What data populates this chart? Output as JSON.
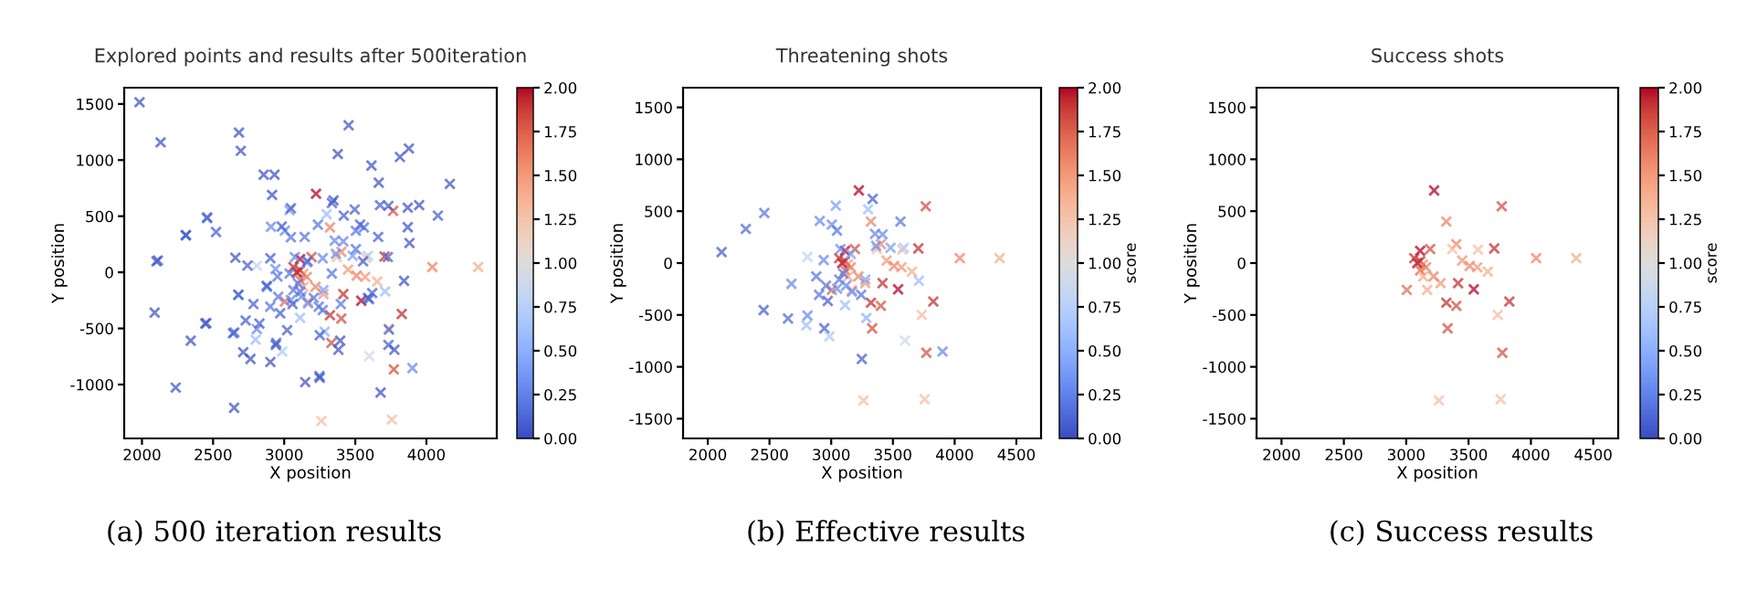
{
  "chart_data": [
    {
      "type": "scatter",
      "title": "Explored points and results after 500iteration",
      "xlabel": "X position",
      "ylabel": "Y position",
      "marker": "cross",
      "xlim": [
        1875,
        4495
      ],
      "ylim": [
        -1480,
        1645
      ],
      "xticks": [
        2000,
        2500,
        3000,
        3500,
        4000
      ],
      "yticks": [
        -1000,
        -500,
        0,
        500,
        1000,
        1500
      ],
      "clim": [
        0,
        2
      ],
      "cticks": [
        {
          "value": 0,
          "label": "0.00"
        },
        {
          "value": 0.25,
          "label": "0.25"
        },
        {
          "value": 0.5,
          "label": "0.50"
        },
        {
          "value": 0.75,
          "label": "0.75"
        },
        {
          "value": 1,
          "label": "1.00"
        },
        {
          "value": 1.25,
          "label": "1.25"
        },
        {
          "value": 1.5,
          "label": "1.50"
        },
        {
          "value": 1.75,
          "label": "1.75"
        },
        {
          "value": 2,
          "label": "2.00"
        }
      ],
      "annotations": [
        "(a) 500 iteration results"
      ],
      "x": [
        3224,
        3322,
        3766,
        3402,
        3192,
        3112,
        3575,
        3706,
        4042,
        4364,
        3449,
        3509,
        3570,
        3654,
        3005,
        3168,
        3276,
        3416,
        3220,
        3542,
        3827,
        3322,
        3402,
        3332,
        3734,
        3771,
        3262,
        3757,
        3135,
        3089,
        3112,
        3159,
        3112,
        3136,
        3065,
        3370,
        2112,
        2308,
        2458,
        2453,
        2678,
        2650,
        2808,
        2799,
        2944,
        2986,
        3248,
        2907,
        3037,
        3005,
        3047,
        2808,
        2939,
        2879,
        2902,
        2958,
        2972,
        3112,
        3047,
        3168,
        3243,
        3276,
        3355,
        3336,
        3299,
        3416,
        3561,
        3364,
        3481,
        3589,
        3710,
        3598,
        3902,
        3285,
        3098,
        3065,
        3121,
        3075,
        3159,
        1983,
        2131,
        2682,
        2695,
        3453,
        3377,
        3614,
        3877,
        3814,
        4165,
        3665,
        2856,
        2932,
        2915,
        3047,
        3674,
        3733,
        3869,
        3949,
        4081,
        3496,
        3419,
        3661,
        3869,
        3881,
        3729,
        3843,
        3597,
        3619,
        2102,
        2458,
        2309,
        2521,
        2657,
        2089,
        2445,
        2343,
        2237,
        2648,
        2640,
        2712,
        2763,
        2903,
        2941,
        3021,
        2729,
        2826,
        3148,
        3250,
        3678,
        3250,
        3394,
        3381,
        3737,
        3775,
        3733,
        2903,
        2742,
        2678,
        2784,
        2983,
        3237,
        3347,
        3534,
        3144,
        2877,
        2953,
        3504,
        3589,
        3398,
        3271,
        3555,
        3504,
        3114,
        3059,
        3208,
        3335,
        3271,
        3165,
        3038
      ],
      "values": [
        700,
        400,
        547,
        182,
        135,
        118,
        129,
        141,
        47,
        47,
        24,
        -29,
        -41,
        -82,
        -259,
        -259,
        -194,
        -194,
        -129,
        -253,
        -371,
        -382,
        -412,
        -629,
        -500,
        -865,
        -1324,
        -1312,
        -12,
        0,
        18,
        -41,
        -70,
        -130,
        47,
        135,
        106,
        329,
        482,
        -453,
        -200,
        -535,
        -506,
        -600,
        -629,
        -706,
        -924,
        406,
        553,
        371,
        312,
        59,
        29,
        -129,
        -306,
        -218,
        -365,
        -406,
        -247,
        -276,
        -306,
        -159,
        282,
        618,
        518,
        276,
        400,
        165,
        147,
        147,
        -171,
        -747,
        -853,
        -529,
        -100,
        -159,
        -218,
        135,
        88,
        1516,
        1158,
        1245,
        1082,
        1310,
        1054,
        951,
        1103,
        1027,
        788,
        799,
        870,
        870,
        690,
        571,
        598,
        592,
        576,
        598,
        505,
        560,
        505,
        315,
        402,
        261,
        136,
        -76,
        -239,
        -185,
        98,
        489,
        332,
        359,
        130,
        -359,
        -457,
        -609,
        -1027,
        -1207,
        -543,
        -712,
        -772,
        -799,
        -647,
        -516,
        -429,
        -457,
        -978,
        -940,
        -1071,
        -560,
        -609,
        -690,
        -511,
        -690,
        -647,
        125,
        60,
        -201,
        -283,
        408,
        424,
        641,
        424,
        315,
        -120,
        -38,
        207,
        -228,
        -283,
        -337,
        98,
        370,
        -174,
        -283,
        -228,
        -11,
        125,
        98,
        -11
      ],
      "cvalues": [
        2.0,
        1.6,
        1.8,
        1.6,
        1.8,
        2.0,
        1.3,
        1.9,
        1.6,
        1.4,
        1.5,
        1.6,
        1.5,
        1.4,
        1.7,
        1.4,
        1.5,
        1.9,
        1.6,
        2.0,
        1.9,
        1.9,
        1.8,
        1.8,
        1.3,
        1.8,
        1.3,
        1.3,
        1.5,
        2.0,
        1.9,
        1.6,
        1.7,
        1.4,
        1.9,
        1.3,
        0.1,
        0.15,
        0.2,
        0.1,
        0.3,
        0.15,
        0.3,
        0.6,
        0.1,
        0.7,
        0.1,
        0.3,
        0.4,
        0.3,
        0.2,
        0.8,
        0.3,
        0.2,
        0.2,
        0.2,
        0.1,
        0.6,
        0.3,
        0.3,
        0.2,
        0.4,
        0.3,
        0.1,
        0.6,
        0.3,
        0.2,
        0.3,
        0.4,
        0.7,
        0.6,
        0.9,
        0.3,
        0.5,
        0.2,
        0.2,
        0.3,
        0.3,
        0.4,
        0.05,
        0.05,
        0.05,
        0.05,
        0.05,
        0.05,
        0.05,
        0.05,
        0.05,
        0.05,
        0.05,
        0.05,
        0.05,
        0.05,
        0.1,
        0.1,
        0.1,
        0.05,
        0.05,
        0.1,
        0.1,
        0.1,
        0.1,
        0.05,
        0.05,
        0.1,
        0.05,
        0.1,
        0.1,
        0.05,
        0.1,
        0.05,
        0.1,
        0.05,
        0.05,
        0.05,
        0.05,
        0.05,
        0.05,
        0.1,
        0.05,
        0.05,
        0.05,
        0.05,
        0.1,
        0.1,
        0.1,
        0.05,
        0.05,
        0.05,
        0.1,
        0.05,
        0.05,
        0.1,
        0.05,
        0.1,
        0.1,
        0.1,
        0.1,
        0.1,
        0.1,
        0.2,
        0.05,
        0.1,
        0.2,
        0.1,
        0.2,
        0.2,
        0.1,
        0.2,
        0.2,
        0.1,
        0.2,
        0.2,
        0.1,
        0.2,
        0.2,
        0.3,
        0.1,
        0.2
      ]
    },
    {
      "type": "scatter",
      "title": "Threatening shots",
      "xlabel": "X position",
      "ylabel": "Y position",
      "clabel": "score",
      "marker": "cross",
      "xlim": [
        1800,
        4700
      ],
      "ylim": [
        -1690,
        1690
      ],
      "xticks": [
        2000,
        2500,
        3000,
        3500,
        4000,
        4500
      ],
      "yticks": [
        -1500,
        -1000,
        -500,
        0,
        500,
        1000,
        1500
      ],
      "clim": [
        0,
        2
      ],
      "cticks": [
        {
          "value": 0,
          "label": "0.00"
        },
        {
          "value": 0.25,
          "label": "0.25"
        },
        {
          "value": 0.5,
          "label": "0.50"
        },
        {
          "value": 0.75,
          "label": "0.75"
        },
        {
          "value": 1,
          "label": "1.00"
        },
        {
          "value": 1.25,
          "label": "1.25"
        },
        {
          "value": 1.5,
          "label": "1.50"
        },
        {
          "value": 1.75,
          "label": "1.75"
        },
        {
          "value": 2,
          "label": "2.00"
        }
      ],
      "annotations": [
        "(b) Effective results"
      ],
      "x": [
        3224,
        3322,
        3766,
        3402,
        3192,
        3112,
        3575,
        3706,
        4042,
        4364,
        3449,
        3509,
        3570,
        3654,
        3005,
        3168,
        3276,
        3416,
        3220,
        3542,
        3827,
        3322,
        3402,
        3332,
        3734,
        3771,
        3262,
        3757,
        3135,
        3089,
        3112,
        3159,
        3112,
        3136,
        3065,
        3370,
        2112,
        2308,
        2458,
        2453,
        2678,
        2650,
        2808,
        2799,
        2944,
        2986,
        3248,
        2907,
        3037,
        3005,
        3047,
        2808,
        2939,
        2879,
        2902,
        2958,
        2972,
        3112,
        3047,
        3168,
        3243,
        3276,
        3355,
        3336,
        3299,
        3416,
        3561,
        3364,
        3481,
        3589,
        3710,
        3598,
        3902,
        3285,
        3098,
        3065,
        3121,
        3075,
        3159
      ],
      "values": [
        700,
        400,
        547,
        182,
        135,
        118,
        129,
        141,
        47,
        47,
        24,
        -29,
        -41,
        -82,
        -259,
        -259,
        -194,
        -194,
        -129,
        -253,
        -371,
        -382,
        -412,
        -629,
        -500,
        -865,
        -1324,
        -1312,
        -12,
        0,
        18,
        -41,
        -70,
        -130,
        47,
        135,
        106,
        329,
        482,
        -453,
        -200,
        -535,
        -506,
        -600,
        -629,
        -706,
        -924,
        406,
        553,
        371,
        312,
        59,
        29,
        -129,
        -306,
        -218,
        -365,
        -406,
        -247,
        -276,
        -306,
        -159,
        282,
        618,
        518,
        276,
        400,
        165,
        147,
        147,
        -171,
        -747,
        -853,
        -529,
        -100,
        -159,
        -218,
        135,
        88
      ],
      "cvalues": [
        2.0,
        1.6,
        1.8,
        1.6,
        1.8,
        2.0,
        1.3,
        1.9,
        1.6,
        1.4,
        1.5,
        1.6,
        1.5,
        1.4,
        1.7,
        1.4,
        1.5,
        1.9,
        1.6,
        2.0,
        1.9,
        1.9,
        1.8,
        1.8,
        1.3,
        1.8,
        1.3,
        1.3,
        1.5,
        2.0,
        1.9,
        1.6,
        1.7,
        1.4,
        1.9,
        1.3,
        0.1,
        0.15,
        0.2,
        0.1,
        0.3,
        0.15,
        0.3,
        0.6,
        0.1,
        0.7,
        0.1,
        0.3,
        0.4,
        0.3,
        0.2,
        0.8,
        0.3,
        0.2,
        0.2,
        0.2,
        0.1,
        0.6,
        0.3,
        0.3,
        0.2,
        0.4,
        0.3,
        0.1,
        0.6,
        0.3,
        0.2,
        0.3,
        0.4,
        0.7,
        0.6,
        0.9,
        0.3,
        0.5,
        0.2,
        0.2,
        0.3,
        0.3,
        0.4
      ]
    },
    {
      "type": "scatter",
      "title": "Success shots",
      "xlabel": "X position",
      "ylabel": "Y position",
      "clabel": "score",
      "marker": "cross",
      "xlim": [
        1800,
        4700
      ],
      "ylim": [
        -1690,
        1690
      ],
      "xticks": [
        2000,
        2500,
        3000,
        3500,
        4000,
        4500
      ],
      "yticks": [
        -1500,
        -1000,
        -500,
        0,
        500,
        1000,
        1500
      ],
      "clim": [
        0,
        2
      ],
      "cticks": [
        {
          "value": 0,
          "label": "0.00"
        },
        {
          "value": 0.25,
          "label": "0.25"
        },
        {
          "value": 0.5,
          "label": "0.50"
        },
        {
          "value": 0.75,
          "label": "0.75"
        },
        {
          "value": 1,
          "label": "1.00"
        },
        {
          "value": 1.25,
          "label": "1.25"
        },
        {
          "value": 1.5,
          "label": "1.50"
        },
        {
          "value": 1.75,
          "label": "1.75"
        },
        {
          "value": 2,
          "label": "2.00"
        }
      ],
      "annotations": [
        "(c) Success results"
      ],
      "x": [
        3224,
        3322,
        3766,
        3402,
        3192,
        3112,
        3575,
        3706,
        4042,
        4364,
        3449,
        3509,
        3570,
        3654,
        3005,
        3168,
        3276,
        3416,
        3220,
        3542,
        3827,
        3322,
        3402,
        3332,
        3734,
        3771,
        3262,
        3757,
        3135,
        3089,
        3112,
        3159,
        3112,
        3136,
        3065,
        3370
      ],
      "values": [
        700,
        400,
        547,
        182,
        135,
        118,
        129,
        141,
        47,
        47,
        24,
        -29,
        -41,
        -82,
        -259,
        -259,
        -194,
        -194,
        -129,
        -253,
        -371,
        -382,
        -412,
        -629,
        -500,
        -865,
        -1324,
        -1312,
        -12,
        0,
        18,
        -41,
        -70,
        -130,
        47,
        135
      ],
      "cvalues": [
        2.0,
        1.6,
        1.8,
        1.6,
        1.8,
        2.0,
        1.3,
        1.9,
        1.6,
        1.4,
        1.5,
        1.6,
        1.5,
        1.4,
        1.7,
        1.4,
        1.5,
        1.9,
        1.6,
        2.0,
        1.9,
        1.9,
        1.8,
        1.8,
        1.3,
        1.8,
        1.3,
        1.3,
        1.5,
        2.0,
        1.9,
        1.6,
        1.7,
        1.4,
        1.9,
        1.3
      ]
    }
  ]
}
